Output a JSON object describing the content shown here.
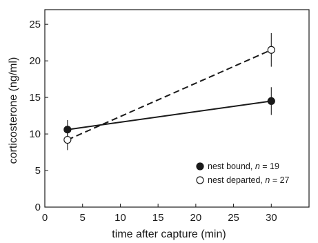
{
  "chart_data": {
    "type": "line",
    "xlabel": "time after capture (min)",
    "ylabel": "corticosterone (ng/ml)",
    "xlim": [
      0,
      35
    ],
    "ylim": [
      0,
      27
    ],
    "xticks": [
      0,
      5,
      10,
      15,
      20,
      25,
      30
    ],
    "yticks": [
      0,
      5,
      10,
      15,
      20,
      25
    ],
    "grid": false,
    "legend_position": "bottom-right",
    "x": [
      3,
      30
    ],
    "series": [
      {
        "legend_prefix": "nest bound, ",
        "n_label": "n",
        "n_value": "= 19",
        "values": [
          10.6,
          14.5
        ],
        "error": [
          1.3,
          1.9
        ],
        "marker": "filled-circle",
        "line_style": "solid"
      },
      {
        "legend_prefix": "nest departed, ",
        "n_label": "n",
        "n_value": "= 27",
        "values": [
          9.2,
          21.5
        ],
        "error": [
          1.4,
          2.3
        ],
        "marker": "open-circle",
        "line_style": "dashed"
      }
    ]
  },
  "colors": {
    "ink": "#1a1a1a",
    "background": "#ffffff"
  }
}
